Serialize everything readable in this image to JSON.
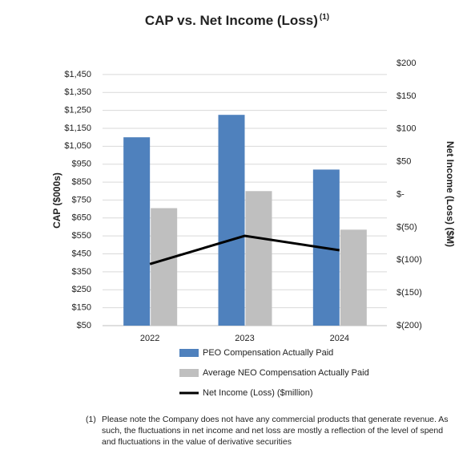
{
  "chart_data": {
    "type": "bar",
    "title": "CAP vs. Net Income (Loss)",
    "title_note": "(1)",
    "y_label": "CAP ($000s)",
    "y2_label": "Net Income (Loss) ($M)",
    "categories": [
      "2022",
      "2023",
      "2024"
    ],
    "series": [
      {
        "name": "PEO Compensation Actually Paid",
        "type": "bar",
        "color": "#4f81bd",
        "values": [
          1100,
          1225,
          920
        ]
      },
      {
        "name": "Average NEO Compensation Actually Paid",
        "type": "bar",
        "color": "#bfbfbf",
        "values": [
          705,
          800,
          585
        ]
      },
      {
        "name": "Net Income (Loss) ($million)",
        "type": "line",
        "axis": "y2",
        "color": "#000000",
        "values": [
          -106,
          -63,
          -85
        ]
      }
    ],
    "ylim": [
      50,
      1512
    ],
    "yticks": [
      {
        "value": 50,
        "label": "$50"
      },
      {
        "value": 150,
        "label": "$150"
      },
      {
        "value": 250,
        "label": "$250"
      },
      {
        "value": 350,
        "label": "$350"
      },
      {
        "value": 450,
        "label": "$450"
      },
      {
        "value": 550,
        "label": "$550"
      },
      {
        "value": 650,
        "label": "$650"
      },
      {
        "value": 750,
        "label": "$750"
      },
      {
        "value": 850,
        "label": "$850"
      },
      {
        "value": 950,
        "label": "$950"
      },
      {
        "value": 1050,
        "label": "$1,050"
      },
      {
        "value": 1150,
        "label": "$1,150"
      },
      {
        "value": 1250,
        "label": "$1,250"
      },
      {
        "value": 1350,
        "label": "$1,350"
      },
      {
        "value": 1450,
        "label": "$1,450"
      }
    ],
    "y2lim": [
      -200,
      200
    ],
    "y2ticks": [
      {
        "value": -200,
        "label": "$(200)"
      },
      {
        "value": -150,
        "label": "$(150)"
      },
      {
        "value": -100,
        "label": "$(100)"
      },
      {
        "value": -50,
        "label": "$(50)"
      },
      {
        "value": 0,
        "label": "$-"
      },
      {
        "value": 50,
        "label": "$50"
      },
      {
        "value": 100,
        "label": "$100"
      },
      {
        "value": 150,
        "label": "$150"
      },
      {
        "value": 200,
        "label": "$200"
      }
    ],
    "grid": true,
    "legend": "bottom",
    "footnote": {
      "marker": "(1)",
      "text": "Please note the Company does not have any commercial products that generate revenue. As such, the fluctuations in net income and net loss are mostly a reflection of the level of spend and fluctuations in the value of derivative securities"
    }
  }
}
